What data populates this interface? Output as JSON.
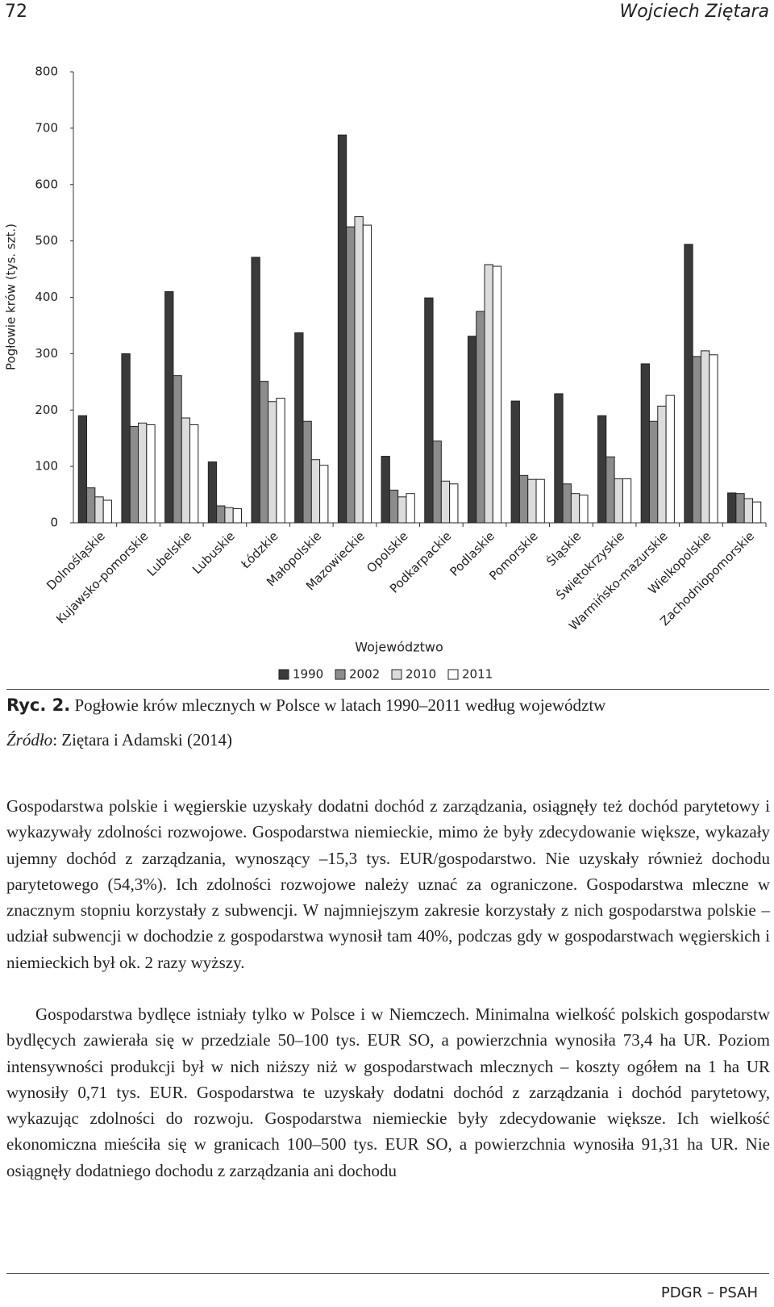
{
  "header": {
    "page_number": "72",
    "author": "Wojciech Ziętara"
  },
  "chart_data": {
    "type": "bar",
    "y_label": "Pogłowie krów (tys. szt.)",
    "x_label": "Województwo",
    "categories": [
      "Dolnośląskie",
      "Kujawsko-pomorskie",
      "Lubelskie",
      "Lubuskie",
      "Łódzkie",
      "Małopolskie",
      "Mazowieckie",
      "Opolskie",
      "Podkarpackie",
      "Podlaskie",
      "Pomorskie",
      "Śląskie",
      "Świętokrzyskie",
      "Warmińsko-mazurskie",
      "Wielkopolskie",
      "Zachodniopomorskie"
    ],
    "series": [
      {
        "name": "1990",
        "color": "#3a3a3a",
        "values": [
          190,
          300,
          410,
          108,
          471,
          337,
          688,
          118,
          399,
          331,
          216,
          229,
          190,
          282,
          494,
          53
        ]
      },
      {
        "name": "2002",
        "color": "#8c8c8c",
        "values": [
          62,
          171,
          261,
          30,
          251,
          180,
          525,
          58,
          145,
          375,
          84,
          69,
          117,
          180,
          295,
          52
        ]
      },
      {
        "name": "2010",
        "color": "#dcdcdc",
        "values": [
          46,
          177,
          186,
          27,
          215,
          112,
          543,
          46,
          74,
          458,
          77,
          52,
          78,
          207,
          305,
          43
        ]
      },
      {
        "name": "2011",
        "color": "#ffffff",
        "values": [
          40,
          174,
          174,
          25,
          221,
          102,
          528,
          52,
          69,
          455,
          77,
          49,
          78,
          226,
          298,
          37
        ]
      }
    ],
    "ylim": [
      0,
      800
    ],
    "yticks": [
      0,
      100,
      200,
      300,
      400,
      500,
      600,
      700,
      800
    ],
    "grid": false,
    "legend": "bottom"
  },
  "caption": {
    "label": "Ryc. 2.",
    "text": " Pogłowie krów mlecznych w Polsce w latach 1990–2011 według województw"
  },
  "source": {
    "label": "Źródło",
    "text": ": Ziętara i Adamski (2014)"
  },
  "paragraphs": [
    "Gospodarstwa polskie i węgierskie uzyskały dodatni dochód z zarządzania, osiągnęły też dochód parytetowy i wykazywały zdolności rozwojowe. Gospodarstwa niemieckie, mimo że były zdecydowanie większe, wykazały ujemny dochód z zarządzania, wynoszący –15,3 tys. EUR/gospodarstwo. Nie uzyskały również dochodu parytetowego (54,3%). Ich zdolności rozwojowe należy uznać za ograniczone. Gospodarstwa mleczne w znacznym stopniu korzystały z subwencji. W najmniejszym zakresie korzystały z nich gospodarstwa polskie – udział subwencji w dochodzie z gospodarstwa wynosił tam 40%, podczas gdy w gospodarstwach węgierskich i niemieckich był ok. 2 razy wyższy.",
    "Gospodarstwa bydlęce istniały tylko w Polsce i w Niemczech. Minimalna wielkość polskich gospodarstw bydlęcych zawierała się w przedziale 50–100 tys. EUR SO, a powierzchnia wynosiła 73,4 ha UR. Poziom intensywności produkcji był w nich niższy niż w gospodarstwach mlecznych – koszty ogółem na 1 ha UR wynosiły 0,71 tys. EUR. Gospodarstwa te uzyskały dodatni dochód z zarządzania i dochód parytetowy, wykazując zdolności do rozwoju. Gospodarstwa niemieckie były zdecydowanie większe. Ich wielkość ekonomiczna mieściła się w granicach 100–500 tys. EUR SO, a powierzchnia wynosiła 91,31 ha UR. Nie osiągnęły dodatniego dochodu z zarządzania ani dochodu"
  ],
  "footer": "PDGR – PSAH"
}
